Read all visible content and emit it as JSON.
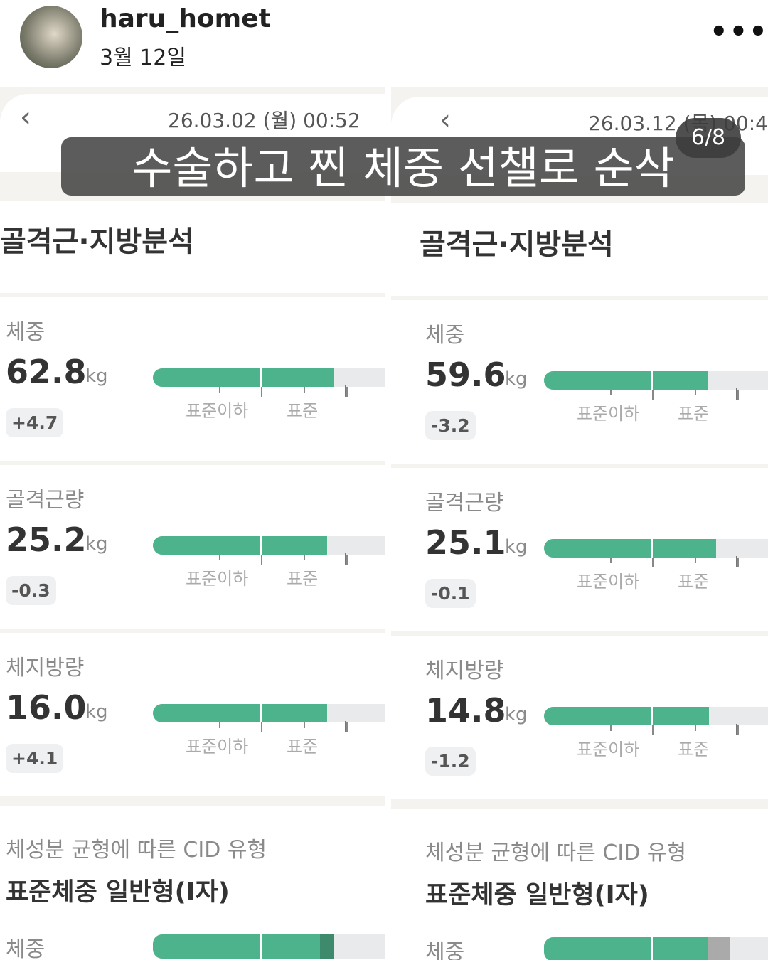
{
  "header": {
    "username": "haru_homet",
    "date": "3월 12일"
  },
  "overlay": {
    "caption": "수술하고 찐 체중 선챌로 순삭",
    "counter": "6/8"
  },
  "panels": [
    {
      "datetime": "26.03.02 (월) 00:52",
      "section_title": "골격근·지방분석",
      "metrics": [
        {
          "label": "체중",
          "value": "62.8",
          "unit": "kg",
          "change": "+4.7",
          "scale": [
            "표준이하",
            "표준"
          ]
        },
        {
          "label": "골격근량",
          "value": "25.2",
          "unit": "kg",
          "change": "-0.3",
          "scale": [
            "표준이하",
            "표준"
          ]
        },
        {
          "label": "체지방량",
          "value": "16.0",
          "unit": "kg",
          "change": "+4.1",
          "scale": [
            "표준이하",
            "표준"
          ]
        }
      ],
      "cid_label": "체성분 균형에 따른 CID 유형",
      "cid_type": "표준체중 일반형(I자)",
      "bottom_label": "체중"
    },
    {
      "datetime": "26.03.12 (목) 00:4",
      "section_title": "골격근·지방분석",
      "metrics": [
        {
          "label": "체중",
          "value": "59.6",
          "unit": "kg",
          "change": "-3.2",
          "scale": [
            "표준이하",
            "표준"
          ]
        },
        {
          "label": "골격근량",
          "value": "25.1",
          "unit": "kg",
          "change": "-0.1",
          "scale": [
            "표준이하",
            "표준"
          ]
        },
        {
          "label": "체지방량",
          "value": "14.8",
          "unit": "kg",
          "change": "-1.2",
          "scale": [
            "표준이하",
            "표준"
          ]
        }
      ],
      "cid_label": "체성분 균형에 따른 CID 유형",
      "cid_type": "표준체중 일반형(I자)",
      "bottom_label": "체중"
    }
  ]
}
